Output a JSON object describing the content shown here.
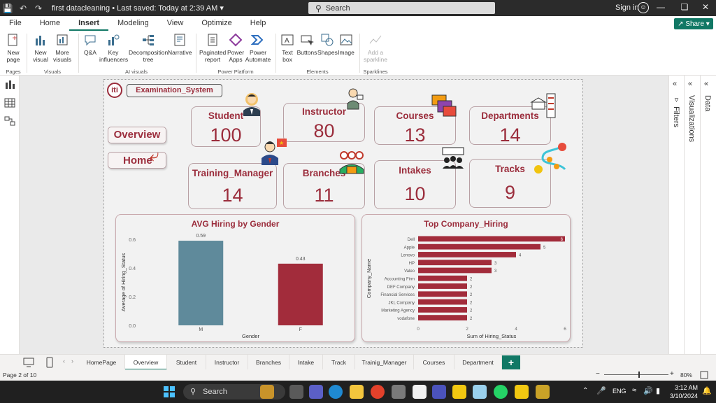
{
  "titlebar": {
    "doc_title": "first datacleaning",
    "saved": "Last saved: Today at 2:39 AM",
    "search_placeholder": "Search",
    "signin": "Sign in"
  },
  "menubar": {
    "items": [
      "File",
      "Home",
      "Insert",
      "Modeling",
      "View",
      "Optimize",
      "Help"
    ],
    "active": "Insert",
    "share_label": "Share"
  },
  "ribbon": {
    "new_page": "New page",
    "new_visual": "New visual",
    "more_visuals": "More visuals",
    "qa": "Q&A",
    "key_influencers": "Key influencers",
    "decomposition_tree": "Decomposition tree",
    "narrative": "Narrative",
    "paginated_report": "Paginated report",
    "power_apps": "Power Apps",
    "power_automate": "Power Automate",
    "text_box": "Text box",
    "buttons": "Buttons",
    "shapes": "Shapes",
    "image": "Image",
    "add_sparkline": "Add a sparkline",
    "groups": [
      "Pages",
      "Visuals",
      "AI visuals",
      "Power Platform",
      "Elements",
      "Sparklines"
    ]
  },
  "panels": {
    "filters": "Filters",
    "visualizations": "Visualizations",
    "data": "Data"
  },
  "report": {
    "title": "Examination_System",
    "nav_overview": "Overview",
    "nav_home": "Home",
    "cards": [
      {
        "label": "Student",
        "value": "100"
      },
      {
        "label": "Instructor",
        "value": "80"
      },
      {
        "label": "Courses",
        "value": "13"
      },
      {
        "label": "Departments",
        "value": "14"
      },
      {
        "label": "Training_Manager",
        "value": "14"
      },
      {
        "label": "Branches",
        "value": "11"
      },
      {
        "label": "Intakes",
        "value": "10"
      },
      {
        "label": "Tracks",
        "value": "9"
      }
    ]
  },
  "chart_data": [
    {
      "type": "bar",
      "title": "AVG Hiring by Gender",
      "xlabel": "Gender",
      "ylabel": "Average of Hiring_Status",
      "categories": [
        "M",
        "F"
      ],
      "values": [
        0.59,
        0.43
      ],
      "data_labels": [
        "0.59",
        "0.43"
      ],
      "yticks": [
        "0.0",
        "0.2",
        "0.4",
        "0.6"
      ],
      "ylim": [
        0,
        0.6
      ],
      "colors": [
        "#5f8a9b",
        "#a22c3b"
      ]
    },
    {
      "type": "bar",
      "orientation": "horizontal",
      "title": "Top Company_Hiring",
      "xlabel": "Sum of Hiring_Status",
      "ylabel": "Company_Name",
      "categories": [
        "Dell",
        "Apple",
        "Lenovo",
        "HP",
        "Valeo",
        "Accounting Firm",
        "DEF Company",
        "Financial Services",
        "JKL Company",
        "Marketing Agency",
        "vodafone"
      ],
      "values": [
        6,
        5,
        4,
        3,
        3,
        2,
        2,
        2,
        2,
        2,
        2
      ],
      "xticks": [
        "0",
        "2",
        "4",
        "6"
      ],
      "xlim": [
        0,
        6
      ],
      "color": "#a22c3b"
    }
  ],
  "page_tabs": {
    "items": [
      "HomePage",
      "Overview",
      "Student",
      "Instructor",
      "Branches",
      "Intake",
      "Track",
      "Trainig_Manager",
      "Courses",
      "Department"
    ],
    "active": "Overview",
    "add": "+"
  },
  "statusbar": {
    "page": "Page 2 of 10",
    "zoom": "80%"
  },
  "taskbar": {
    "search": "Search",
    "lang": "ENG",
    "time": "3:12 AM",
    "date": "3/10/2024"
  }
}
